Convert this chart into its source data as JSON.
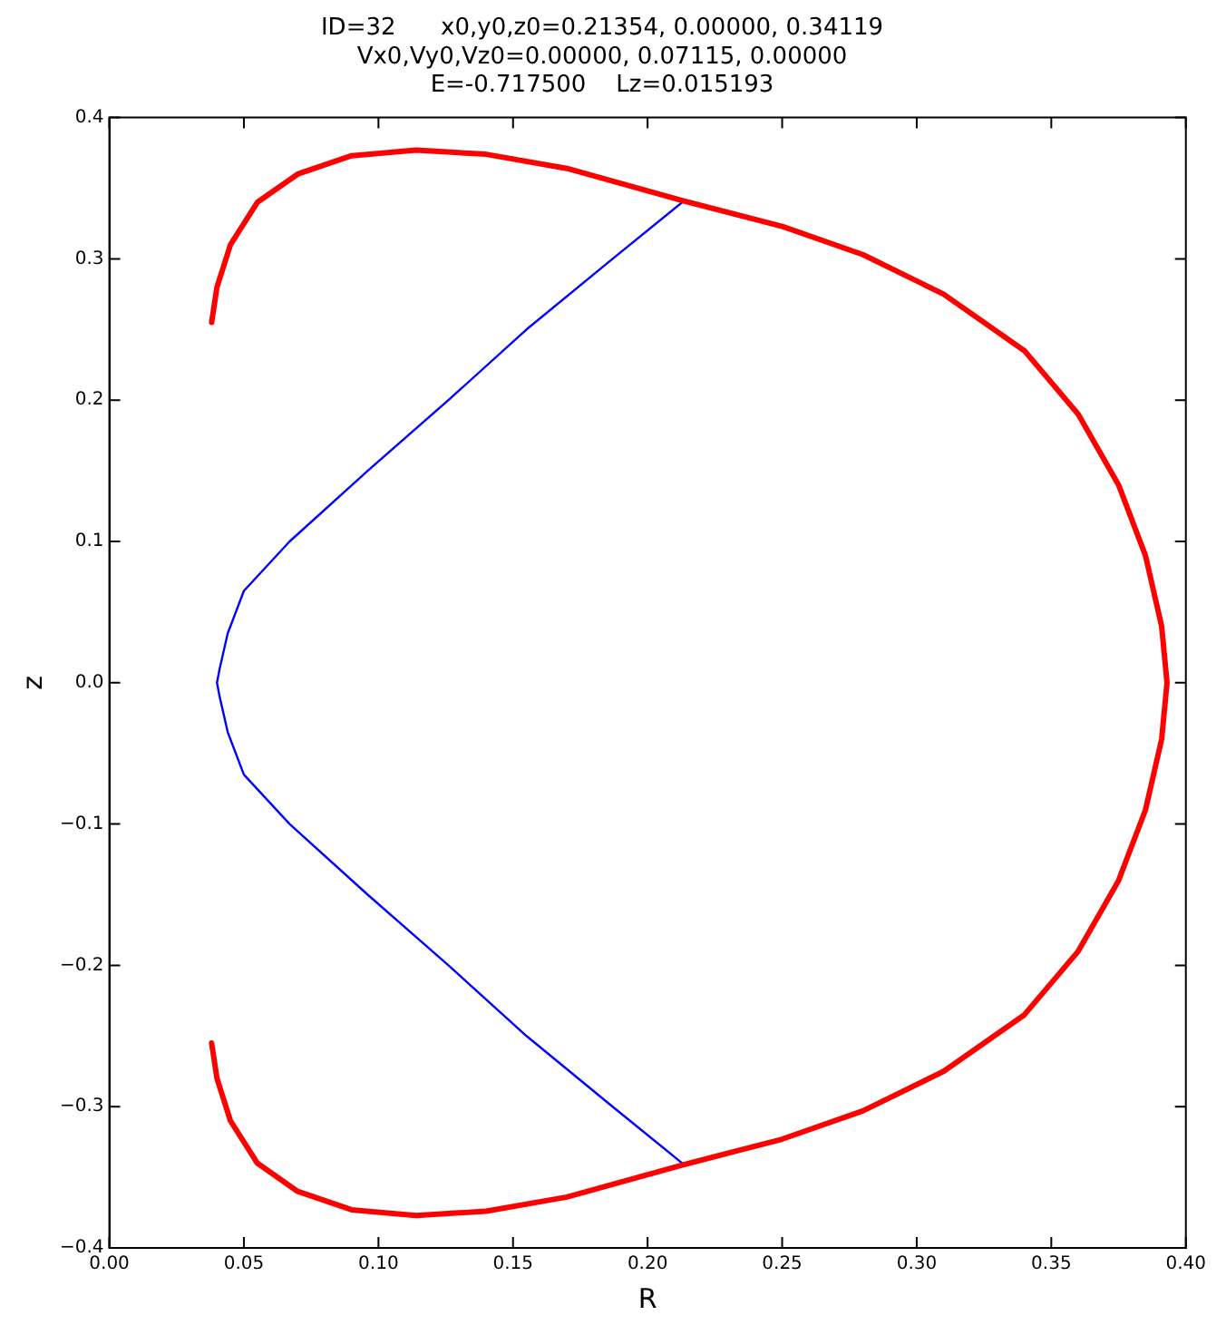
{
  "chart_data": {
    "type": "line",
    "title": "ID=32      x0,y0,z0=0.21354, 0.00000, 0.34119\nVx0,Vy0,Vz0=0.00000, 0.07115, 0.00000\nE=-0.717500    Lz=0.015193",
    "xlabel": "R",
    "ylabel": "z",
    "xlim": [
      0,
      0.4
    ],
    "ylim": [
      -0.4,
      0.4
    ],
    "xticks": [
      {
        "value": 0,
        "label": "0.00"
      },
      {
        "value": 0.05,
        "label": "0.05"
      },
      {
        "value": 0.1,
        "label": "0.10"
      },
      {
        "value": 0.15,
        "label": "0.15"
      },
      {
        "value": 0.2,
        "label": "0.20"
      },
      {
        "value": 0.25,
        "label": "0.25"
      },
      {
        "value": 0.3,
        "label": "0.30"
      },
      {
        "value": 0.35,
        "label": "0.35"
      },
      {
        "value": 0.4,
        "label": "0.40"
      }
    ],
    "yticks": [
      {
        "value": -0.4,
        "label": "−0.4"
      },
      {
        "value": -0.3,
        "label": "−0.3"
      },
      {
        "value": -0.2,
        "label": "−0.2"
      },
      {
        "value": -0.1,
        "label": "−0.1"
      },
      {
        "value": 0,
        "label": "0.0"
      },
      0.1,
      0.2,
      0.3,
      0.4
    ],
    "marker": "none",
    "line_style": "solid",
    "legend": false,
    "series": [
      {
        "color": "#ff0000",
        "x": [
          0.038,
          0.04,
          0.045,
          0.055,
          0.07,
          0.09,
          0.114,
          0.14,
          0.17,
          0.2135,
          0.25,
          0.28,
          0.31,
          0.34,
          0.36,
          0.375,
          0.385,
          0.391,
          0.393,
          0.391,
          0.385,
          0.375,
          0.36,
          0.34,
          0.31,
          0.28,
          0.25,
          0.2135,
          0.17,
          0.14,
          0.114,
          0.09,
          0.07,
          0.055,
          0.045,
          0.04,
          0.038
        ],
        "values": [
          0.255,
          0.28,
          0.31,
          0.34,
          0.36,
          0.373,
          0.377,
          0.374,
          0.364,
          0.341,
          0.323,
          0.303,
          0.275,
          0.235,
          0.19,
          0.14,
          0.09,
          0.04,
          0,
          -0.04,
          -0.09,
          -0.14,
          -0.19,
          -0.235,
          -0.275,
          -0.303,
          -0.323,
          -0.341,
          -0.364,
          -0.374,
          -0.377,
          -0.373,
          -0.36,
          -0.34,
          -0.31,
          -0.28,
          -0.255
        ]
      },
      {
        "color": "#0000ff",
        "x": [
          0.2135,
          0.187,
          0.155,
          0.126,
          0.096,
          0.067,
          0.05,
          0.044,
          0.041,
          0.04,
          0.041,
          0.044,
          0.05,
          0.067,
          0.096,
          0.126,
          0.155,
          0.187,
          0.2135
        ],
        "values": [
          0.341,
          0.3,
          0.25,
          0.2,
          0.15,
          0.1,
          0.065,
          0.035,
          0.01,
          0,
          -0.01,
          -0.035,
          -0.065,
          -0.1,
          -0.15,
          -0.2,
          -0.25,
          -0.3,
          -0.341
        ]
      }
    ]
  }
}
